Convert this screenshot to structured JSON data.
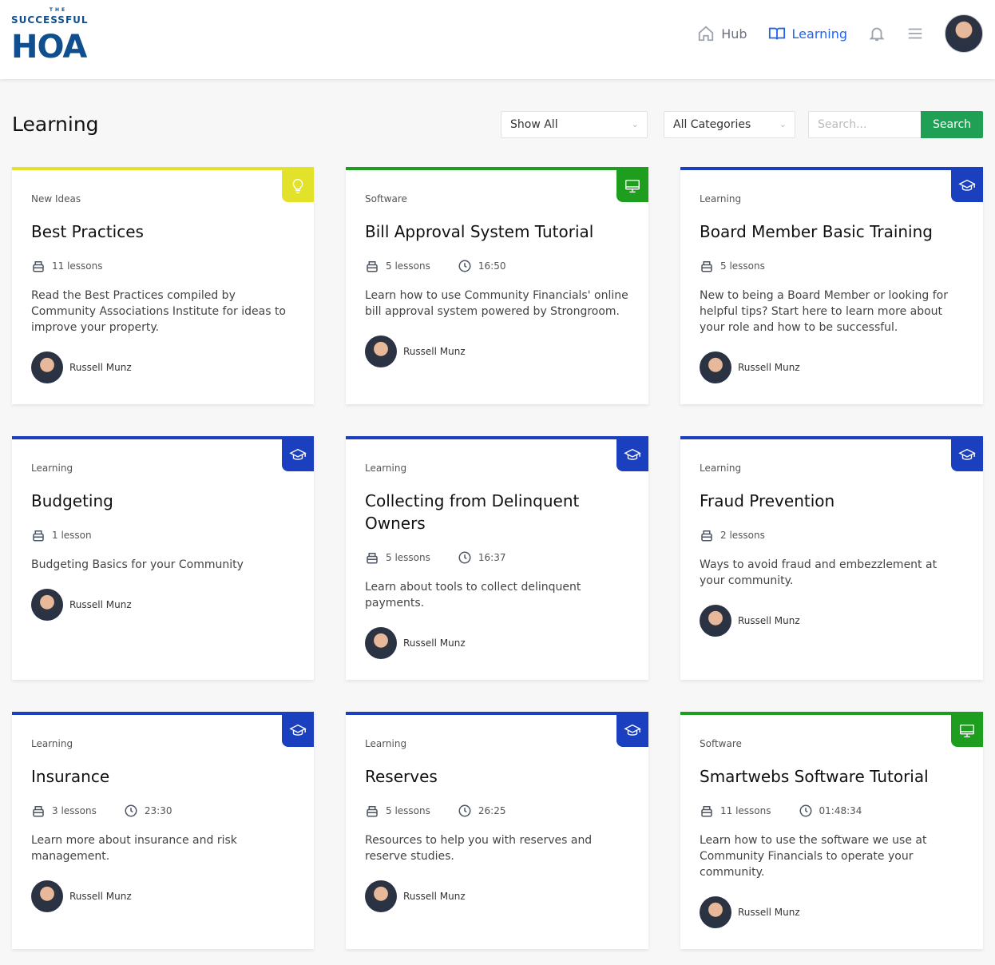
{
  "brand": {
    "logo_the": "THE",
    "logo_line1": "SUCCESSFUL",
    "logo_line2": "HOA"
  },
  "nav": {
    "hub": "Hub",
    "learning": "Learning"
  },
  "page": {
    "title": "Learning"
  },
  "filters": {
    "type": "Show All",
    "category": "All Categories",
    "search_placeholder": "Search...",
    "search_label": "Search"
  },
  "colors": {
    "New Ideas": "#e2e22a",
    "Software": "#1e9e1e",
    "Learning": "#1a3fbf",
    "search": "#1fa055"
  },
  "courses": [
    {
      "category": "New Ideas",
      "icon": "lightbulb-icon",
      "title": "Best Practices",
      "lessons": "11 lessons",
      "duration": "",
      "description": "Read the Best Practices compiled by Community Associations Institute for ideas to improve your property.",
      "author": "Russell Munz"
    },
    {
      "category": "Software",
      "icon": "monitor-icon",
      "title": "Bill Approval System Tutorial",
      "lessons": "5 lessons",
      "duration": "16:50",
      "description": "Learn how to use Community Financials' online bill approval system powered by Strongroom.",
      "author": "Russell Munz"
    },
    {
      "category": "Learning",
      "icon": "graduation-cap-icon",
      "title": "Board Member Basic Training",
      "lessons": "5 lessons",
      "duration": "",
      "description": "New to being a Board Member or looking for helpful tips? Start here to learn more about your role and how to be successful.",
      "author": "Russell Munz"
    },
    {
      "category": "Learning",
      "icon": "graduation-cap-icon",
      "title": "Budgeting",
      "lessons": "1 lesson",
      "duration": "",
      "description": "Budgeting Basics for your Community",
      "author": "Russell Munz"
    },
    {
      "category": "Learning",
      "icon": "graduation-cap-icon",
      "title": "Collecting from Delinquent Owners",
      "lessons": "5 lessons",
      "duration": "16:37",
      "description": "Learn about tools to collect delinquent payments.",
      "author": "Russell Munz"
    },
    {
      "category": "Learning",
      "icon": "graduation-cap-icon",
      "title": "Fraud Prevention",
      "lessons": "2 lessons",
      "duration": "",
      "description": "Ways to avoid fraud and embezzlement at your community.",
      "author": "Russell Munz"
    },
    {
      "category": "Learning",
      "icon": "graduation-cap-icon",
      "title": "Insurance",
      "lessons": "3 lessons",
      "duration": "23:30",
      "description": "Learn more about insurance and risk management.",
      "author": "Russell Munz"
    },
    {
      "category": "Learning",
      "icon": "graduation-cap-icon",
      "title": "Reserves",
      "lessons": "5 lessons",
      "duration": "26:25",
      "description": "Resources to help you with reserves and reserve studies.",
      "author": "Russell Munz"
    },
    {
      "category": "Software",
      "icon": "monitor-icon",
      "title": "Smartwebs Software Tutorial",
      "lessons": "11 lessons",
      "duration": "01:48:34",
      "description": "Learn how to use the software we use at Community Financials to operate your community.",
      "author": "Russell Munz"
    }
  ]
}
